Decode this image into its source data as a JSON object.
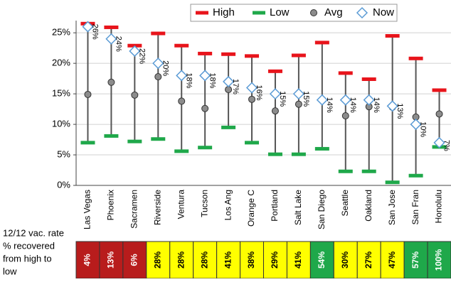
{
  "chart_data": {
    "type": "range",
    "categories": [
      "Las Vegas",
      "Phoenix",
      "Sacramen",
      "Riverside",
      "Ventura",
      "Tucson",
      "Los Ang",
      "Orange C",
      "Portland",
      "Salt Lake",
      "San Diego",
      "Seattle",
      "Oakland",
      "San Jose",
      "San Fran",
      "Honolulu"
    ],
    "series": [
      {
        "name": "High",
        "color": "#e8141b",
        "values": [
          26.5,
          25.9,
          22.9,
          24.9,
          22.9,
          21.6,
          21.5,
          21.2,
          18.7,
          21.3,
          23.4,
          18.4,
          17.4,
          24.5,
          20.8,
          15.6
        ]
      },
      {
        "name": "Low",
        "color": "#1fa84a",
        "values": [
          7.0,
          8.1,
          7.2,
          7.6,
          5.6,
          6.2,
          9.5,
          7.0,
          5.1,
          5.1,
          6.0,
          2.3,
          2.3,
          0.5,
          1.6,
          6.3
        ]
      },
      {
        "name": "Avg",
        "color": "#8c8c8c",
        "values": [
          14.9,
          16.9,
          14.8,
          17.8,
          13.8,
          12.6,
          15.7,
          14.1,
          12.2,
          13.3,
          14.1,
          11.4,
          12.9,
          12.8,
          11.2,
          11.7
        ]
      },
      {
        "name": "Now",
        "color": "#5b9bd5",
        "values": [
          26,
          24,
          22,
          20,
          18,
          18,
          17,
          16,
          15,
          15,
          14,
          14,
          14,
          13,
          10,
          7
        ],
        "value_labels": [
          "26%",
          "24%",
          "22%",
          "20%",
          "18%",
          "18%",
          "17%",
          "16%",
          "15%",
          "15%",
          "14%",
          "14%",
          "14%",
          "13%",
          "10%",
          "7%"
        ]
      }
    ],
    "ylim": [
      0,
      27
    ],
    "yticks": [
      {
        "value": 0,
        "label": "0%"
      },
      {
        "value": 5,
        "label": "5%"
      },
      {
        "value": 10,
        "label": "10%"
      },
      {
        "value": 15,
        "label": "15%"
      },
      {
        "value": 20,
        "label": "20%"
      },
      {
        "value": 25,
        "label": "25%"
      }
    ],
    "grid": true,
    "legend": "top-right"
  },
  "table": {
    "row_label": [
      "12/12 vac. rate",
      "% recovered",
      "from high to",
      "low"
    ],
    "cells": [
      "4%",
      "13%",
      "6%",
      "28%",
      "28%",
      "28%",
      "41%",
      "38%",
      "29%",
      "41%",
      "54%",
      "30%",
      "27%",
      "47%",
      "57%",
      "100%"
    ],
    "cell_colors": [
      "#b81c1c",
      "#b81c1c",
      "#b81c1c",
      "#ffff00",
      "#ffff00",
      "#ffff00",
      "#ffff00",
      "#ffff00",
      "#ffff00",
      "#ffff00",
      "#1fa84a",
      "#ffff00",
      "#ffff00",
      "#ffff00",
      "#1fa84a",
      "#1fa84a"
    ]
  }
}
